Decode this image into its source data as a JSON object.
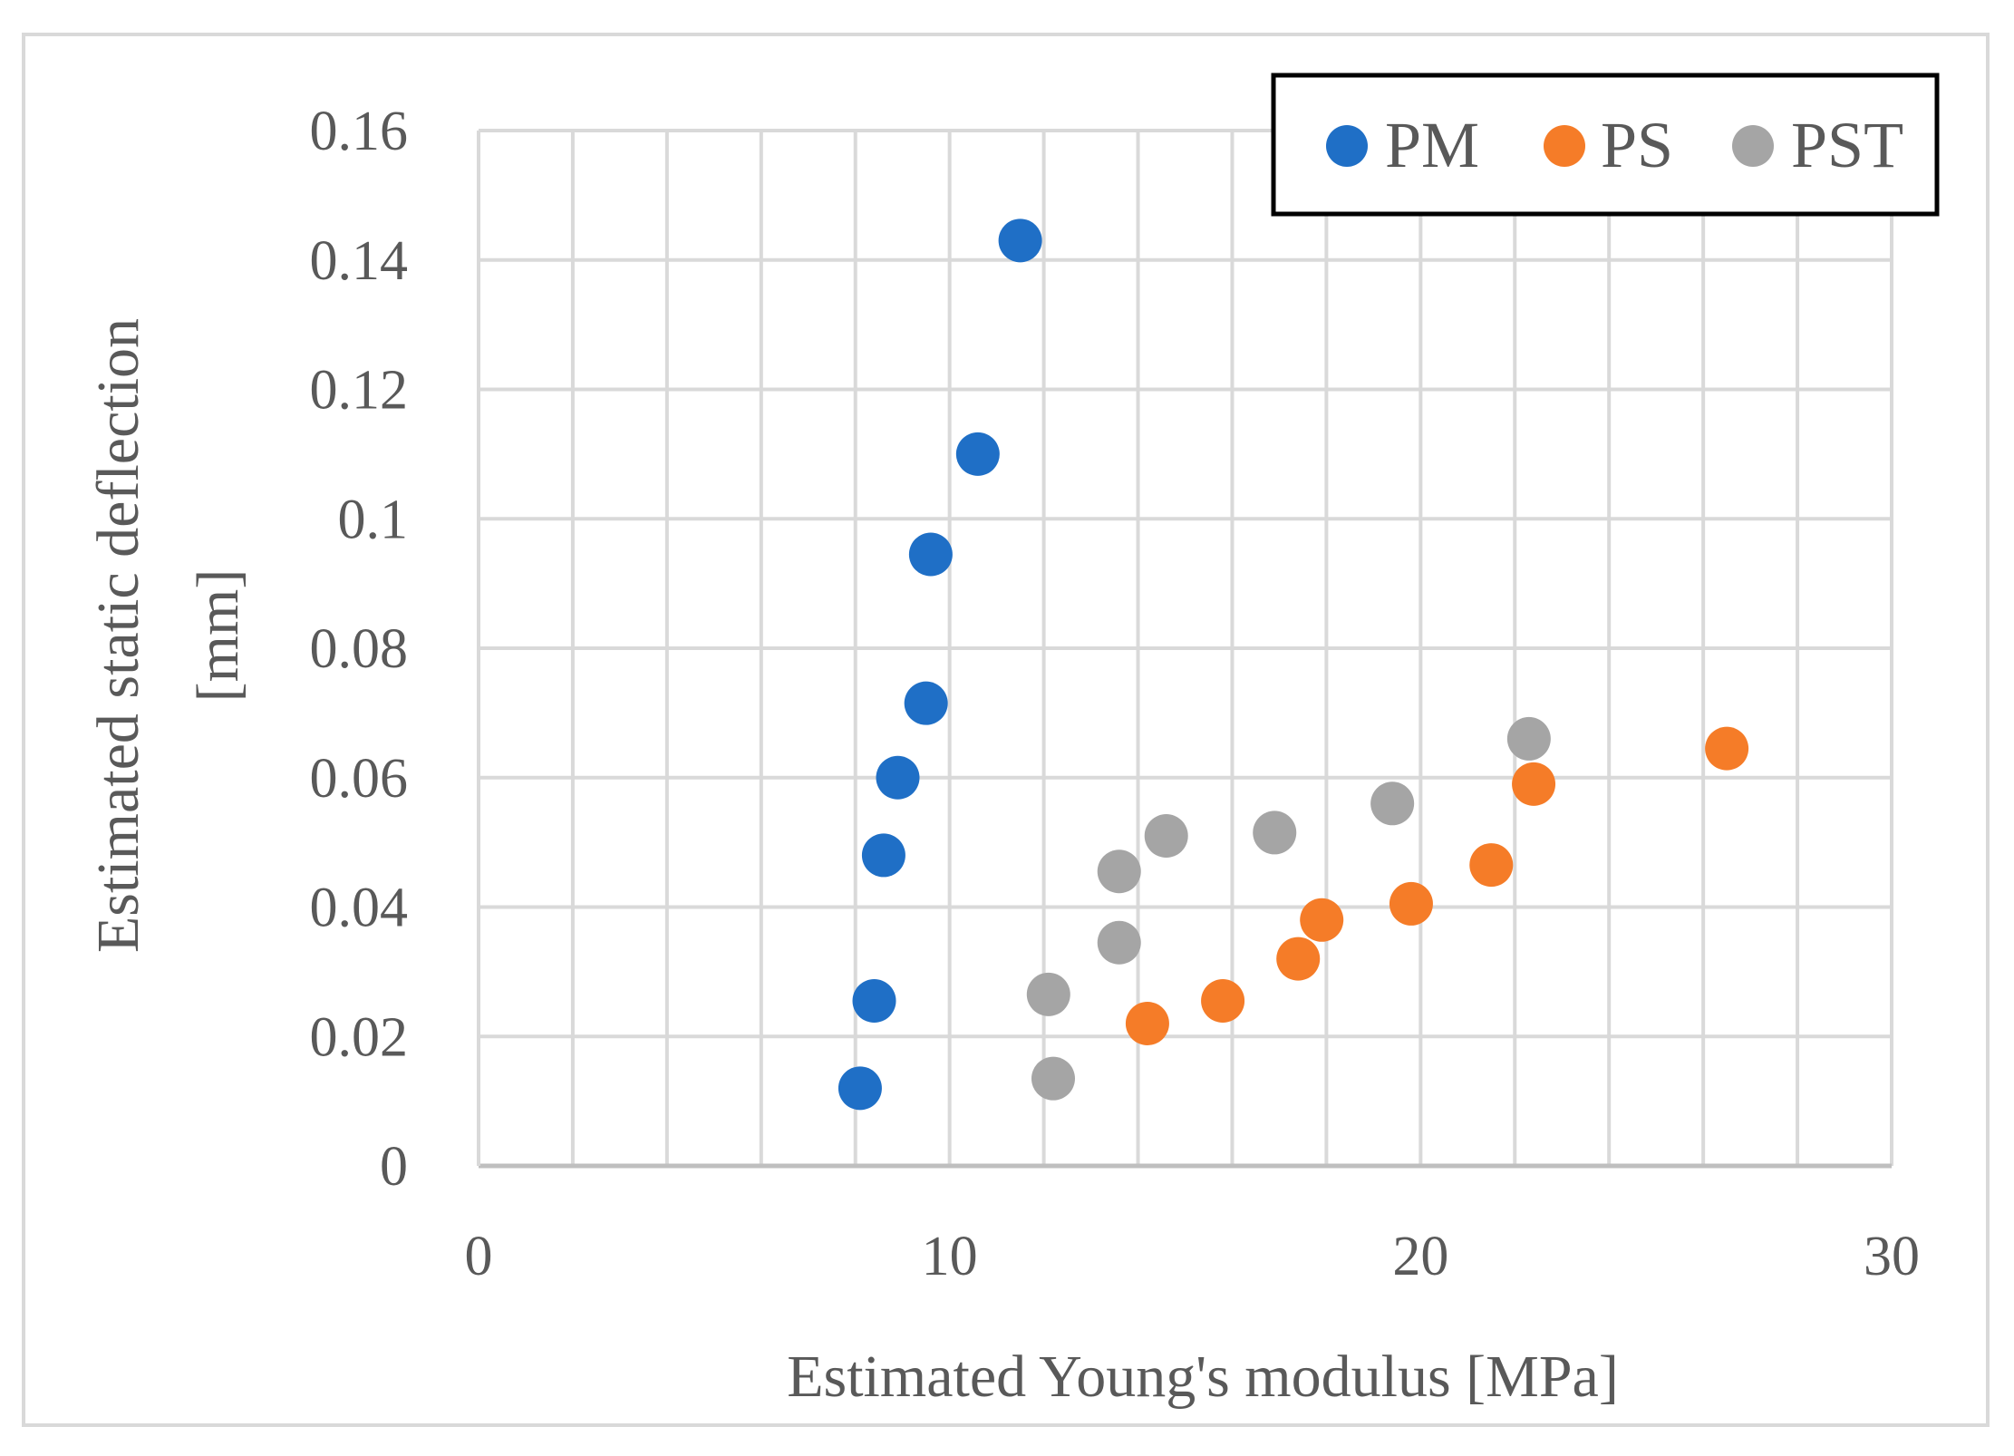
{
  "chart_data": {
    "type": "scatter",
    "title": "",
    "xlabel": "Estimated Young's modulus [MPa]",
    "ylabel_lines": [
      "Estimated static deflection",
      "[mm]"
    ],
    "xlim": [
      0,
      30
    ],
    "ylim": [
      0,
      0.16
    ],
    "x_ticks": [
      0,
      10,
      20,
      30
    ],
    "x_tick_labels": [
      "0",
      "10",
      "20",
      "30"
    ],
    "y_ticks": [
      0,
      0.02,
      0.04,
      0.06,
      0.08,
      0.1,
      0.12,
      0.14,
      0.16
    ],
    "y_tick_labels": [
      "0",
      "0.02",
      "0.04",
      "0.06",
      "0.08",
      "0.1",
      "0.12",
      "0.14",
      "0.16"
    ],
    "x_minor_gridlines": [
      2,
      4,
      6,
      8,
      10,
      12,
      14,
      16,
      18,
      20,
      22,
      24,
      26,
      28,
      30
    ],
    "grid": true,
    "legend_position": "top-right",
    "series": [
      {
        "name": "PM",
        "color": "#1f6fc6",
        "points": [
          {
            "x": 8.1,
            "y": 0.012
          },
          {
            "x": 8.4,
            "y": 0.0255
          },
          {
            "x": 8.6,
            "y": 0.048
          },
          {
            "x": 8.9,
            "y": 0.06
          },
          {
            "x": 9.5,
            "y": 0.0715
          },
          {
            "x": 9.6,
            "y": 0.0945
          },
          {
            "x": 10.6,
            "y": 0.11
          },
          {
            "x": 11.5,
            "y": 0.143
          }
        ]
      },
      {
        "name": "PS",
        "color": "#f57c28",
        "points": [
          {
            "x": 14.2,
            "y": 0.022
          },
          {
            "x": 15.8,
            "y": 0.0255
          },
          {
            "x": 17.4,
            "y": 0.032
          },
          {
            "x": 17.9,
            "y": 0.038
          },
          {
            "x": 19.8,
            "y": 0.0405
          },
          {
            "x": 21.5,
            "y": 0.0465
          },
          {
            "x": 22.4,
            "y": 0.059
          },
          {
            "x": 26.5,
            "y": 0.0645
          }
        ]
      },
      {
        "name": "PST",
        "color": "#a5a5a5",
        "points": [
          {
            "x": 12.2,
            "y": 0.0135
          },
          {
            "x": 12.1,
            "y": 0.0265
          },
          {
            "x": 13.6,
            "y": 0.0345
          },
          {
            "x": 13.6,
            "y": 0.0455
          },
          {
            "x": 14.6,
            "y": 0.051
          },
          {
            "x": 16.9,
            "y": 0.0515
          },
          {
            "x": 19.4,
            "y": 0.056
          },
          {
            "x": 22.3,
            "y": 0.066
          }
        ]
      }
    ]
  }
}
